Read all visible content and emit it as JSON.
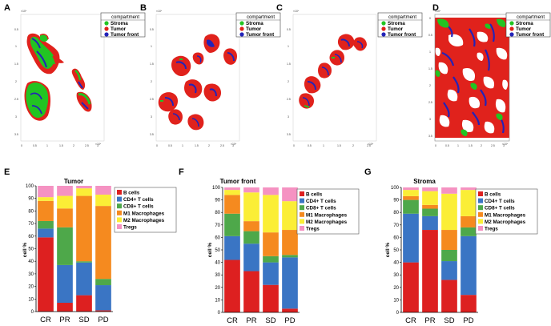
{
  "legend_title": "compartment",
  "compartments": [
    {
      "name": "Stroma",
      "color": "#22c422"
    },
    {
      "name": "Tumor",
      "color": "#e0221c"
    },
    {
      "name": "Tumor front",
      "color": "#2323b8"
    }
  ],
  "x_exponent": "×10⁴",
  "y_exponent": "×10⁴",
  "spatial_panels": [
    {
      "label": "A",
      "xticks": [
        "0",
        "0.5",
        "1",
        "1.5",
        "2",
        "2.5",
        "3"
      ],
      "yticks": [
        "0.5",
        "1",
        "1.5",
        "2",
        "2.5",
        "3",
        "3.5"
      ]
    },
    {
      "label": "B",
      "xticks": [
        "0",
        "0.5",
        "1",
        "1.5",
        "2",
        "2.5",
        "3"
      ],
      "yticks": [
        "0.5",
        "1",
        "1.5",
        "2",
        "2.5",
        "3",
        "3.5"
      ]
    },
    {
      "label": "C",
      "xticks": [
        "0",
        "0.5",
        "1",
        "1.5",
        "2",
        "2.5"
      ],
      "yticks": [
        "0.5",
        "1",
        "1.5",
        "2",
        "2.5",
        "3",
        "3.5"
      ]
    },
    {
      "label": "D",
      "xticks": [
        "0",
        "0.5",
        "1",
        "1.5",
        "2",
        "2.5",
        "3"
      ],
      "yticks": [
        "0",
        "0.5",
        "1",
        "1.5",
        "2",
        "2.5",
        "3",
        "3.5"
      ]
    }
  ],
  "cell_types": [
    {
      "name": "B cells",
      "color": "#dd2020"
    },
    {
      "name": "CD4+ T cells",
      "color": "#3a75c4"
    },
    {
      "name": "CD8+ T cells",
      "color": "#4ea84a"
    },
    {
      "name": "M1 Macrophages",
      "color": "#f58a1f"
    },
    {
      "name": "M2 Macrophages",
      "color": "#fbee36"
    },
    {
      "name": "Tregs",
      "color": "#f592c2"
    }
  ],
  "chart_data": [
    {
      "label": "E",
      "type": "bar",
      "stacked": true,
      "title": "Tumor",
      "ylabel": "cell %",
      "ylim": [
        0,
        100
      ],
      "yticks": [
        0,
        10,
        20,
        30,
        40,
        50,
        60,
        70,
        80,
        90,
        100
      ],
      "categories": [
        "CR",
        "PR",
        "SD",
        "PD"
      ],
      "series": [
        {
          "name": "B cells",
          "values": [
            59,
            7,
            13,
            1
          ]
        },
        {
          "name": "CD4+ T cells",
          "values": [
            7,
            30,
            26,
            20
          ]
        },
        {
          "name": "CD8+ T cells",
          "values": [
            6,
            30,
            1,
            5
          ]
        },
        {
          "name": "M1 Macrophages",
          "values": [
            16,
            15,
            52,
            58
          ]
        },
        {
          "name": "M2 Macrophages",
          "values": [
            3,
            10,
            6,
            9
          ]
        },
        {
          "name": "Tregs",
          "values": [
            9,
            8,
            2,
            7
          ]
        }
      ]
    },
    {
      "label": "F",
      "type": "bar",
      "stacked": true,
      "title": "Tumor front",
      "ylabel": "cell %",
      "ylim": [
        0,
        100
      ],
      "yticks": [
        0,
        10,
        20,
        30,
        40,
        50,
        60,
        70,
        80,
        90,
        100
      ],
      "categories": [
        "CR",
        "PR",
        "SD",
        "PD"
      ],
      "series": [
        {
          "name": "B cells",
          "values": [
            42,
            33,
            22,
            3
          ]
        },
        {
          "name": "CD4+ T cells",
          "values": [
            19,
            22,
            18,
            41
          ]
        },
        {
          "name": "CD8+ T cells",
          "values": [
            18,
            10,
            5,
            2
          ]
        },
        {
          "name": "M1 Macrophages",
          "values": [
            15,
            8,
            19,
            20
          ]
        },
        {
          "name": "M2 Macrophages",
          "values": [
            4,
            23,
            30,
            23
          ]
        },
        {
          "name": "Tregs",
          "values": [
            2,
            4,
            6,
            11
          ]
        }
      ]
    },
    {
      "label": "G",
      "type": "bar",
      "stacked": true,
      "title": "Stroma",
      "ylabel": "cell %",
      "ylim": [
        0,
        100
      ],
      "yticks": [
        0,
        10,
        20,
        30,
        40,
        50,
        60,
        70,
        80,
        90,
        100
      ],
      "categories": [
        "CR",
        "PR",
        "SD",
        "PD"
      ],
      "series": [
        {
          "name": "B cells",
          "values": [
            40,
            66,
            26,
            14
          ]
        },
        {
          "name": "CD4+ T cells",
          "values": [
            39,
            11,
            15,
            47
          ]
        },
        {
          "name": "CD8+ T cells",
          "values": [
            11,
            6,
            9,
            7
          ]
        },
        {
          "name": "M1 Macrophages",
          "values": [
            3,
            3,
            16,
            9
          ]
        },
        {
          "name": "M2 Macrophages",
          "values": [
            5,
            11,
            29,
            21
          ]
        },
        {
          "name": "Tregs",
          "values": [
            2,
            3,
            5,
            2
          ]
        }
      ]
    }
  ]
}
